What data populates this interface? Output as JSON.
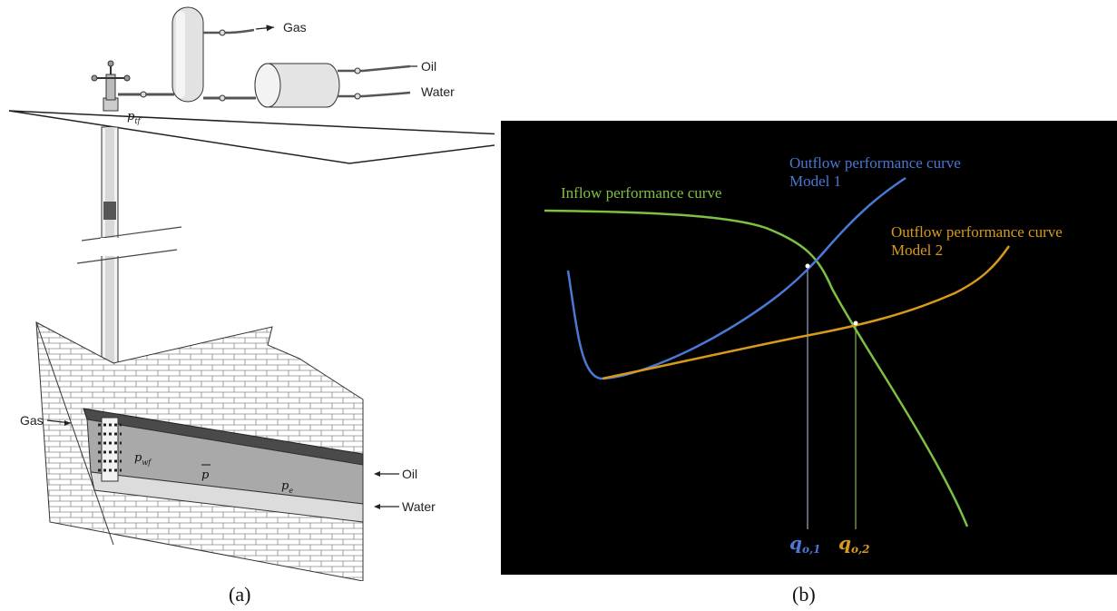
{
  "panel_a": {
    "caption": "(a)",
    "labels": {
      "gas_out": "Gas",
      "oil_out": "Oil",
      "water_out": "Water",
      "gas_zone": "Gas",
      "oil_zone": "Oil",
      "water_zone": "Water"
    },
    "symbols": {
      "ptf": "p",
      "ptf_sub": "tf",
      "pwf": "p",
      "pwf_sub": "wf",
      "pbar": "p",
      "pe": "p",
      "pe_sub": "e"
    }
  },
  "panel_b": {
    "caption": "(b)",
    "inflow_label": "Inflow performance curve",
    "outflow1_label_line1": "Outflow performance curve",
    "outflow1_label_line2": "Model 1",
    "outflow2_label_line1": "Outflow performance curve",
    "outflow2_label_line2": "Model 2",
    "q1_main": "q",
    "q1_sub": "o,1",
    "q2_main": "q",
    "q2_sub": "o,2",
    "colors": {
      "background": "#000000",
      "inflow": "#7dc142",
      "outflow1": "#4a78d4",
      "outflow2": "#d89a1a",
      "q1_line": "#b9c8ee",
      "q2_line": "#a9d07a"
    }
  }
}
